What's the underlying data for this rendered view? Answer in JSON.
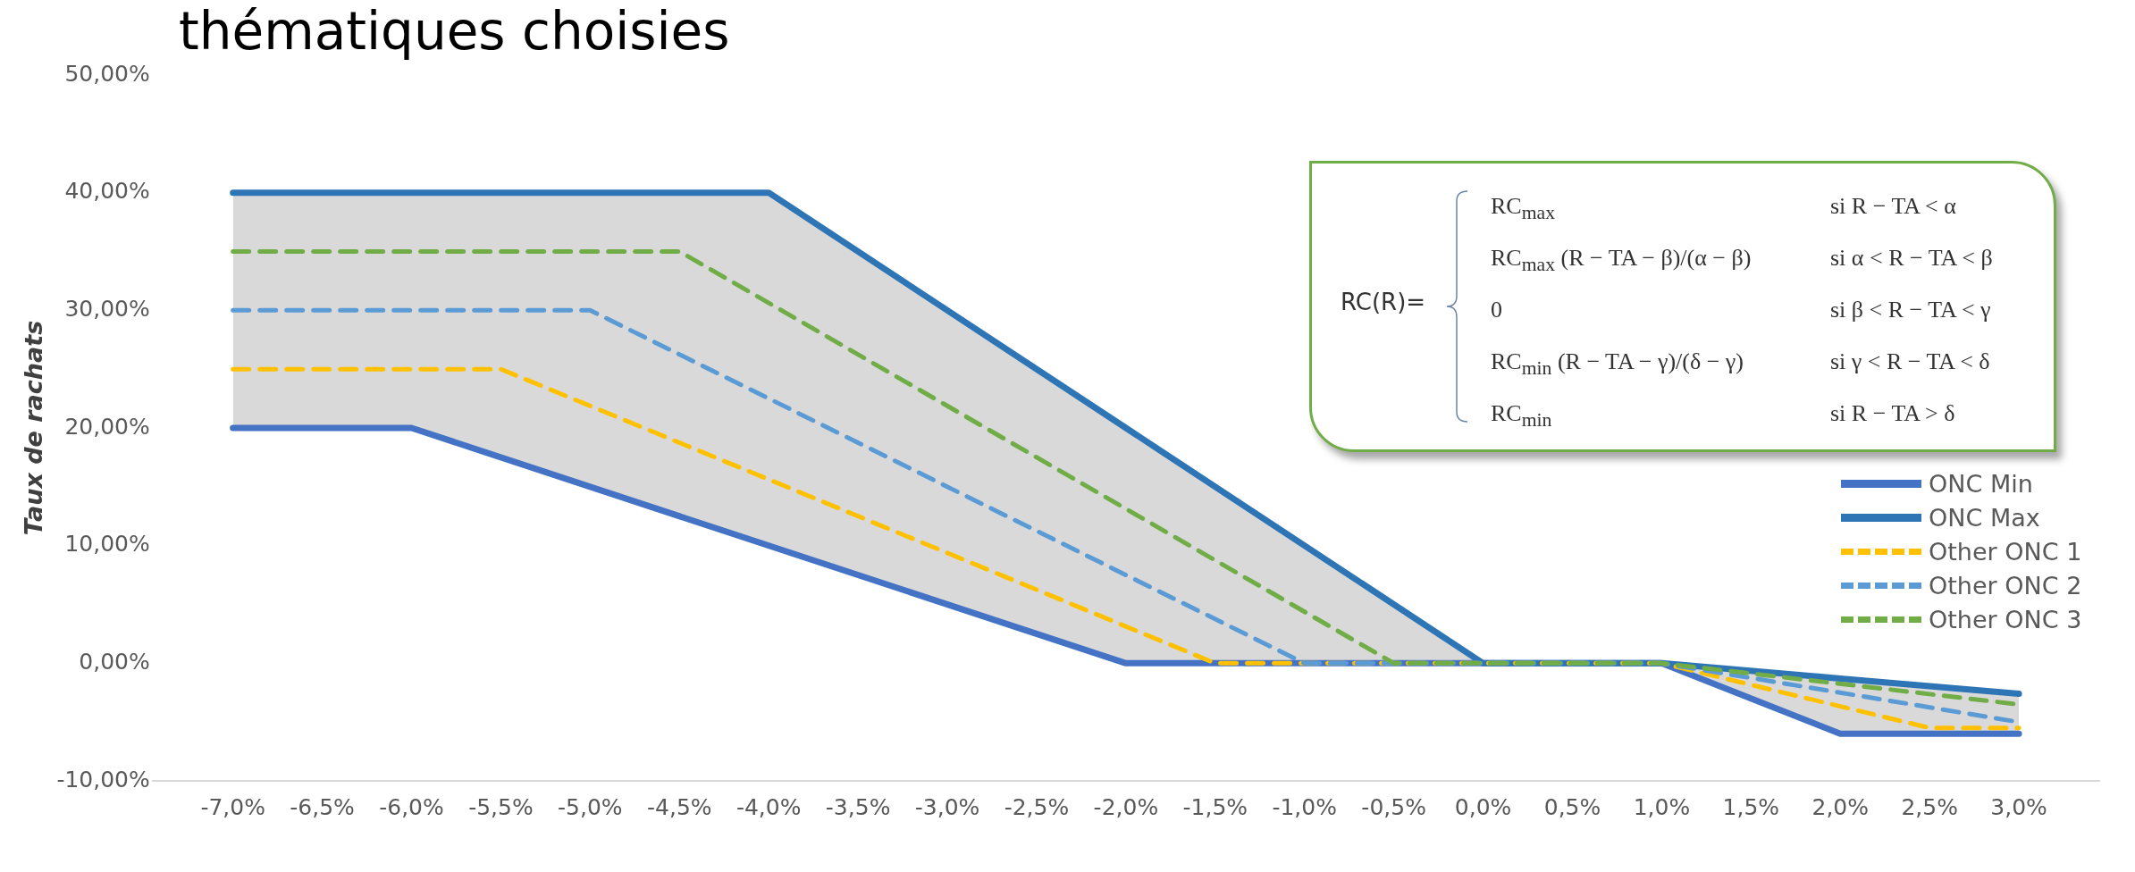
{
  "chart_data": {
    "type": "line",
    "title": "thématiques choisies",
    "ylabel": "Taux de rachats",
    "xlim": [
      -7.45,
      3.45
    ],
    "xticks": [
      {
        "value": -7,
        "label": "-7,0%"
      },
      {
        "value": -6.5,
        "label": "-6,5%"
      },
      {
        "value": -6,
        "label": "-6,0%"
      },
      {
        "value": -5.5,
        "label": "-5,5%"
      },
      {
        "value": -5,
        "label": "-5,0%"
      },
      {
        "value": -4.5,
        "label": "-4,5%"
      },
      {
        "value": -4,
        "label": "-4,0%"
      },
      {
        "value": -3.5,
        "label": "-3,5%"
      },
      {
        "value": -3,
        "label": "-3,0%"
      },
      {
        "value": -2.5,
        "label": "-2,5%"
      },
      {
        "value": -2,
        "label": "-2,0%"
      },
      {
        "value": -1.5,
        "label": "-1,5%"
      },
      {
        "value": -1,
        "label": "-1,0%"
      },
      {
        "value": -0.5,
        "label": "-0,5%"
      },
      {
        "value": 0,
        "label": "0,0%"
      },
      {
        "value": 0.5,
        "label": "0,5%"
      },
      {
        "value": 1,
        "label": "1,0%"
      },
      {
        "value": 1.5,
        "label": "1,5%"
      },
      {
        "value": 2,
        "label": "2,0%"
      },
      {
        "value": 2.5,
        "label": "2,5%"
      },
      {
        "value": 3,
        "label": "3,0%"
      }
    ],
    "ylim": [
      -10,
      50
    ],
    "yticks": [
      {
        "value": -10,
        "label": "-10,00%"
      },
      {
        "value": 0,
        "label": "0,00%"
      },
      {
        "value": 10,
        "label": "10,00%"
      },
      {
        "value": 20,
        "label": "20,00%"
      },
      {
        "value": 30,
        "label": "30,00%"
      },
      {
        "value": 40,
        "label": "40,00%"
      },
      {
        "value": 50,
        "label": "50,00%"
      }
    ],
    "grid": false,
    "legend": "right",
    "marker": "none",
    "series": [
      {
        "name": "ONC Min",
        "color": "#4472c4",
        "line_style": "solid",
        "x": [
          -7,
          -6,
          -2,
          1,
          2,
          3
        ],
        "values": [
          20,
          20,
          0,
          0,
          -6,
          -6
        ]
      },
      {
        "name": "ONC Max",
        "color": "#2e75b6",
        "line_style": "solid",
        "x": [
          -7,
          -6,
          -4,
          -2,
          0,
          1,
          2,
          3
        ],
        "values": [
          40,
          40,
          40,
          20,
          0,
          0,
          -1.3,
          -2.6
        ],
        "lower": [
          20,
          20,
          10,
          0,
          0,
          0,
          -6,
          -6
        ],
        "upper": [
          40,
          40,
          40,
          20,
          0,
          0,
          -1.3,
          -2.6
        ]
      },
      {
        "name": "Other ONC 1",
        "color": "#ffc000",
        "line_style": "dashed",
        "x": [
          -7,
          -5.5,
          -1.5,
          1,
          2.5,
          3
        ],
        "values": [
          25,
          25,
          0,
          0,
          -5.5,
          -5.5
        ]
      },
      {
        "name": "Other ONC 2",
        "color": "#5b9bd5",
        "line_style": "dashed",
        "x": [
          -7,
          -5,
          -1,
          1,
          3
        ],
        "values": [
          30,
          30,
          0,
          0,
          -5
        ]
      },
      {
        "name": "Other ONC 3",
        "color": "#70ad47",
        "line_style": "dashed",
        "x": [
          -7,
          -4.5,
          -0.5,
          1,
          3
        ],
        "values": [
          35,
          35,
          0,
          0,
          -3.5
        ]
      }
    ],
    "annotations": [
      "RC(R)=",
      "RC$_{max}$",
      "si R − TA < α",
      "RC$_{max}$ (R − TA − β)/(α − β)",
      "si α < R − TA < β",
      "0",
      "si β < R − TA < γ",
      "RC$_{min}$ (R − TA − γ)/(δ − γ)",
      "si γ < R − TA < δ",
      "RC$_{min}$",
      "si R − TA > δ"
    ]
  }
}
